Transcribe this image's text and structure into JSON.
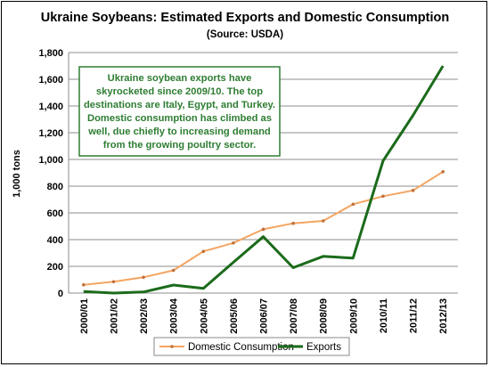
{
  "chart_data": {
    "type": "line",
    "title": "Ukraine Soybeans:  Estimated Exports and Domestic Consumption",
    "subtitle": "(Source:  USDA)",
    "ylabel": "1,000 tons",
    "xlabel": "",
    "ylim": [
      0,
      1800
    ],
    "yticks": [
      "0",
      "200",
      "400",
      "600",
      "800",
      "1,000",
      "1,200",
      "1,400",
      "1,600",
      "1,800"
    ],
    "ytick_values": [
      0,
      200,
      400,
      600,
      800,
      1000,
      1200,
      1400,
      1600,
      1800
    ],
    "grid": true,
    "legend_position": "bottom",
    "categories": [
      "2000/01",
      "2001/02",
      "2002/03",
      "2003/04",
      "2004/05",
      "2005/06",
      "2006/07",
      "2007/08",
      "2008/09",
      "2009/10",
      "2010/11",
      "2011/12",
      "2012/13"
    ],
    "series": [
      {
        "name": "Domestic Consumption",
        "color": "#f4a460",
        "marker": "dot",
        "values": [
          62,
          85,
          118,
          170,
          312,
          375,
          477,
          522,
          540,
          665,
          725,
          768,
          908
        ]
      },
      {
        "name": "Exports",
        "color": "#1b6b1b",
        "marker": "none",
        "values": [
          12,
          0,
          8,
          60,
          35,
          230,
          422,
          190,
          275,
          262,
          990,
          1330,
          1700
        ]
      }
    ],
    "annotation": {
      "lines": [
        "Ukraine soybean exports have",
        "skyrocketed since 2009/10.  The top",
        "destinations  are Italy, Egypt, and Turkey.",
        "Domestic consumption  has climbed as",
        "well, due chiefly to increasing demand",
        "from the growing poultry sector."
      ],
      "text_color": "#2e7d32",
      "border_color": "#2e7d32"
    }
  }
}
